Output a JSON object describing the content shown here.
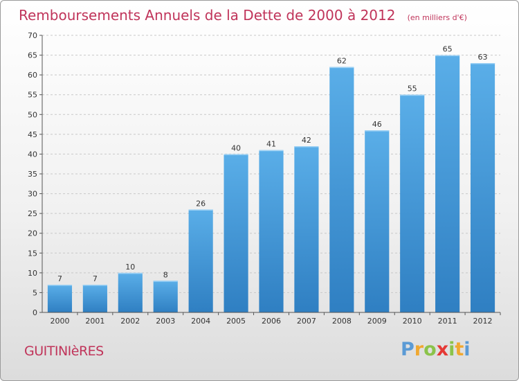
{
  "chart_data": {
    "type": "bar",
    "title": "Remboursements Annuels de la Dette de 2000 à 2012",
    "subtitle": "(en milliers d'€)",
    "categories": [
      "2000",
      "2001",
      "2002",
      "2003",
      "2004",
      "2005",
      "2006",
      "2007",
      "2008",
      "2009",
      "2010",
      "2011",
      "2012"
    ],
    "values": [
      7,
      7,
      10,
      8,
      26,
      40,
      41,
      42,
      62,
      46,
      55,
      65,
      63
    ],
    "ylim": [
      0,
      70
    ],
    "yticks": [
      0,
      5,
      10,
      15,
      20,
      25,
      30,
      35,
      40,
      45,
      50,
      55,
      60,
      65,
      70
    ],
    "grid": true,
    "bar_color_top": "#5aaee8",
    "bar_color_bottom": "#2f7fc2",
    "title_color": "#c0345a"
  },
  "place_name": "GUITINIèRES",
  "logo": {
    "letters": [
      "P",
      "r",
      "o",
      "x",
      "i",
      "t",
      "i"
    ],
    "colors": [
      "#5b9bd5",
      "#f0a830",
      "#8bc34a",
      "#e53935",
      "#8bc34a",
      "#f0a830",
      "#5b9bd5"
    ]
  }
}
